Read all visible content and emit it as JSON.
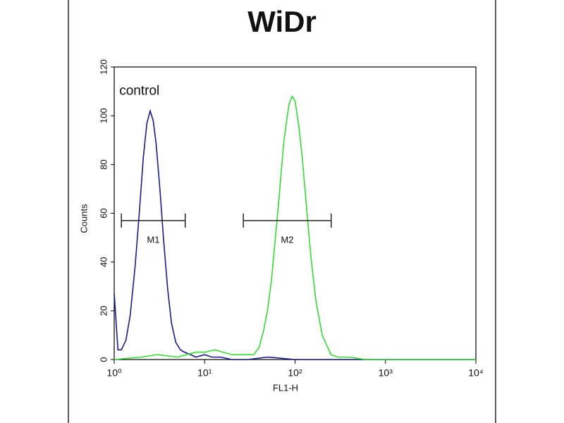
{
  "chart_data": {
    "type": "line",
    "title": "WiDr",
    "xlabel": "FL1-H",
    "ylabel": "Counts",
    "xscale": "log",
    "xlim": [
      1,
      10000
    ],
    "ylim": [
      0,
      120
    ],
    "xticks": [
      {
        "value": 1,
        "label": "10⁰"
      },
      {
        "value": 10,
        "label": "10¹"
      },
      {
        "value": 100,
        "label": "10²"
      },
      {
        "value": 1000,
        "label": "10³"
      },
      {
        "value": 10000,
        "label": "10⁴"
      }
    ],
    "yticks": [
      0,
      20,
      40,
      60,
      80,
      100,
      120
    ],
    "series": [
      {
        "name": "control",
        "color": "#1a1a8c",
        "x": [
          1,
          1.1,
          1.2,
          1.35,
          1.5,
          1.7,
          1.9,
          2.1,
          2.3,
          2.5,
          2.7,
          2.9,
          3.2,
          3.5,
          3.9,
          4.3,
          4.8,
          5.4,
          6,
          7,
          8,
          10,
          12,
          15,
          20,
          30,
          50,
          100,
          200,
          500,
          10000
        ],
        "values": [
          27,
          4,
          4,
          8,
          18,
          38,
          61,
          83,
          97,
          102,
          98,
          89,
          70,
          50,
          29,
          15,
          7,
          4,
          3,
          2,
          1,
          2,
          1,
          1,
          0,
          0,
          1,
          0,
          0,
          0,
          0
        ]
      },
      {
        "color": "#33dd33",
        "x": [
          1,
          2,
          3,
          5,
          8,
          10,
          13,
          16,
          20,
          25,
          30,
          35,
          40,
          45,
          50,
          55,
          60,
          65,
          70,
          75,
          80,
          86,
          93,
          100,
          110,
          120,
          135,
          150,
          170,
          200,
          250,
          300,
          400,
          600,
          1000,
          10000
        ],
        "values": [
          0,
          1,
          2,
          1,
          3,
          3,
          4,
          3,
          2,
          2,
          2,
          2,
          5,
          12,
          21,
          33,
          48,
          62,
          76,
          89,
          97,
          105,
          108,
          106,
          96,
          83,
          61,
          42,
          24,
          10,
          2,
          1,
          1,
          0,
          0,
          0
        ]
      }
    ],
    "markers": [
      {
        "label": "M1",
        "range": [
          1.2,
          6.1
        ],
        "y": 57
      },
      {
        "label": "M2",
        "range": [
          26.8,
          251
        ],
        "y": 57
      }
    ],
    "annotations": [
      {
        "text": "control",
        "x": 1.9,
        "y": 110
      }
    ]
  }
}
